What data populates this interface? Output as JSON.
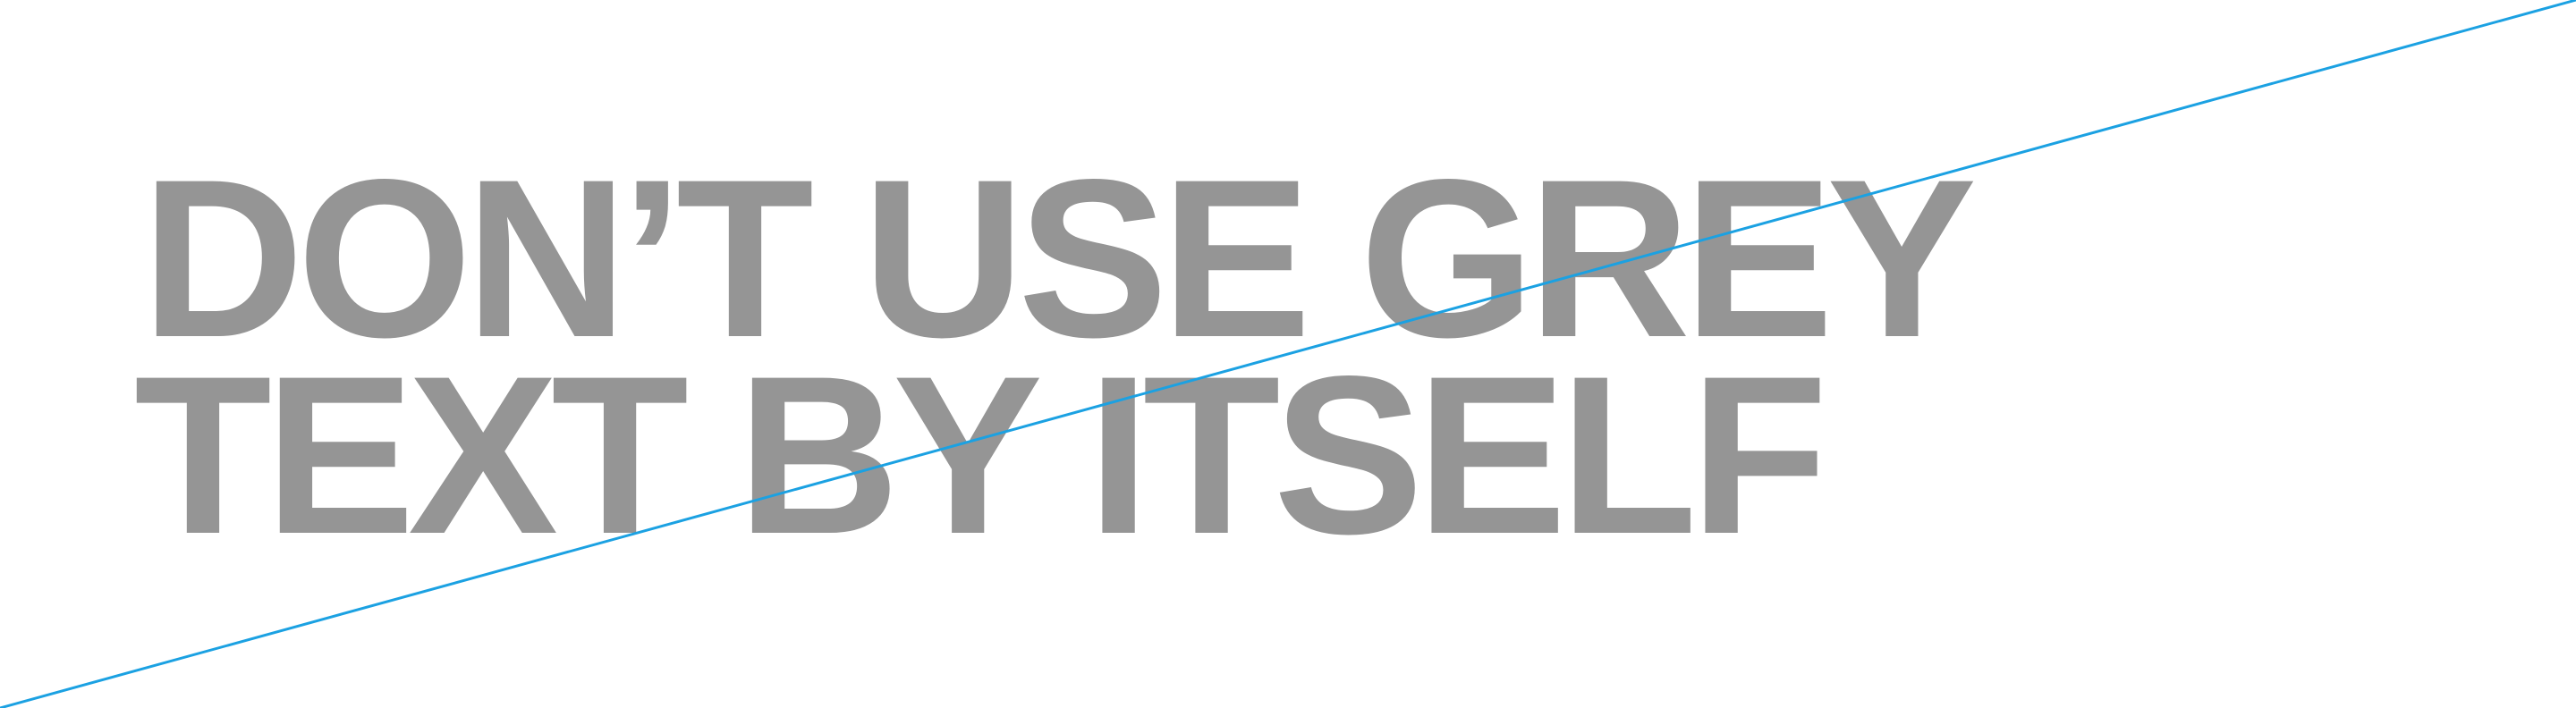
{
  "headline": {
    "line1": "DON’T USE GREY",
    "line2": "TEXT BY ITSELF"
  },
  "colors": {
    "background": "#ffffff",
    "text": "#959595",
    "slash": "#1ba1e2"
  }
}
